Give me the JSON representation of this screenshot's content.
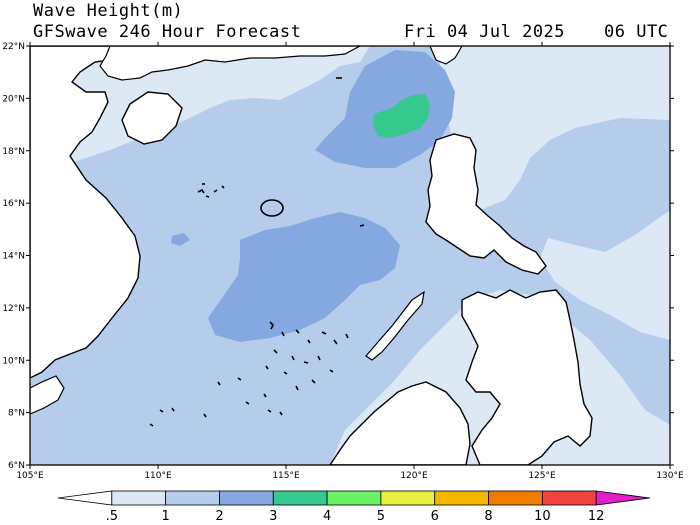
{
  "header": {
    "title": "Wave Height(m)",
    "model": "GFSwave 246 Hour Forecast",
    "date": "Fri 04 Jul 2025",
    "time": "06 UTC"
  },
  "map": {
    "lon_range": [
      105,
      130
    ],
    "lat_range": [
      6,
      22
    ],
    "lon_ticks": [
      "105°E",
      "110°E",
      "115°E",
      "120°E",
      "125°E",
      "130°E"
    ],
    "lat_ticks": [
      "22°N",
      "20°N",
      "18°N",
      "16°N",
      "14°N",
      "12°N",
      "10°N",
      "8°N",
      "6°N"
    ]
  },
  "legend": {
    "labels": [
      ".5",
      "1",
      "2",
      "3",
      "4",
      "5",
      "6",
      "8",
      "10",
      "12"
    ],
    "colors": [
      "#ffffff",
      "#dde8f5",
      "#b5cdeb",
      "#86a8e0",
      "#36c98e",
      "#6cf064",
      "#e8f040",
      "#f2b800",
      "#f07d00",
      "#f04040",
      "#c80010",
      "#e020c8"
    ]
  },
  "colors": {
    "land": "#ffffff",
    "sea_low": "#dde8f5",
    "sea_mid": "#b5cdeb",
    "sea_high": "#86a8e0",
    "sea_peak": "#36c98e",
    "coast": "#000000"
  }
}
